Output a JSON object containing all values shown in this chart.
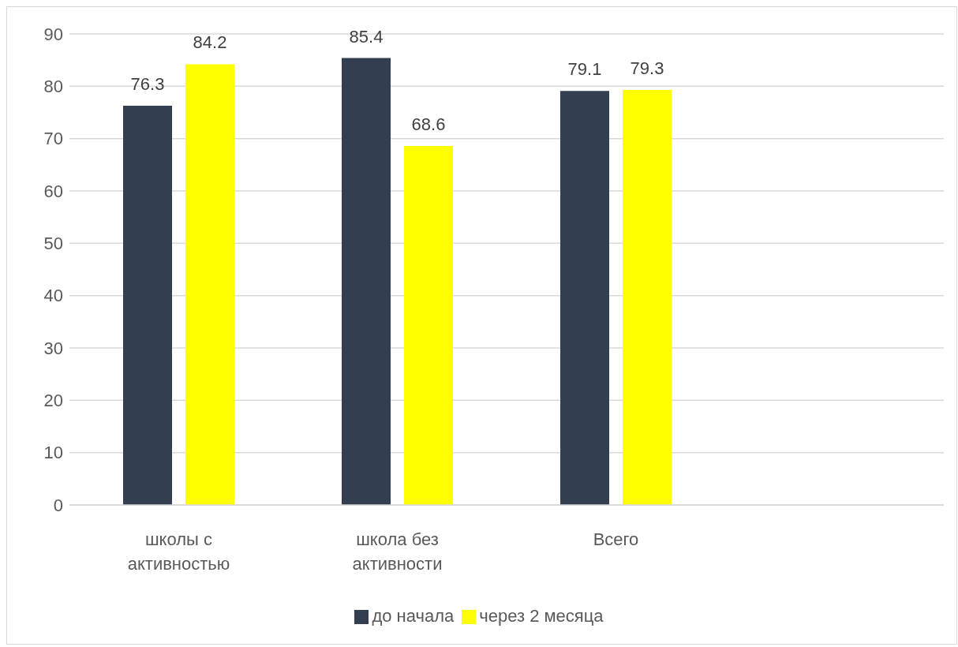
{
  "chart_data": {
    "type": "bar",
    "categories": [
      "школы с активностью",
      "школа без активности",
      "Всего",
      null
    ],
    "series": [
      {
        "name": "до начала",
        "color": "#333f50",
        "values": [
          76.3,
          85.4,
          79.1,
          null
        ]
      },
      {
        "name": "через 2 месяца",
        "color": "#ffff00",
        "values": [
          84.2,
          68.6,
          79.3,
          null
        ]
      }
    ],
    "ylim": [
      0,
      90
    ],
    "yticks": [
      0,
      10,
      20,
      30,
      40,
      50,
      60,
      70,
      80,
      90
    ],
    "grid": "y",
    "legend": "bottom",
    "data_labels": true
  }
}
